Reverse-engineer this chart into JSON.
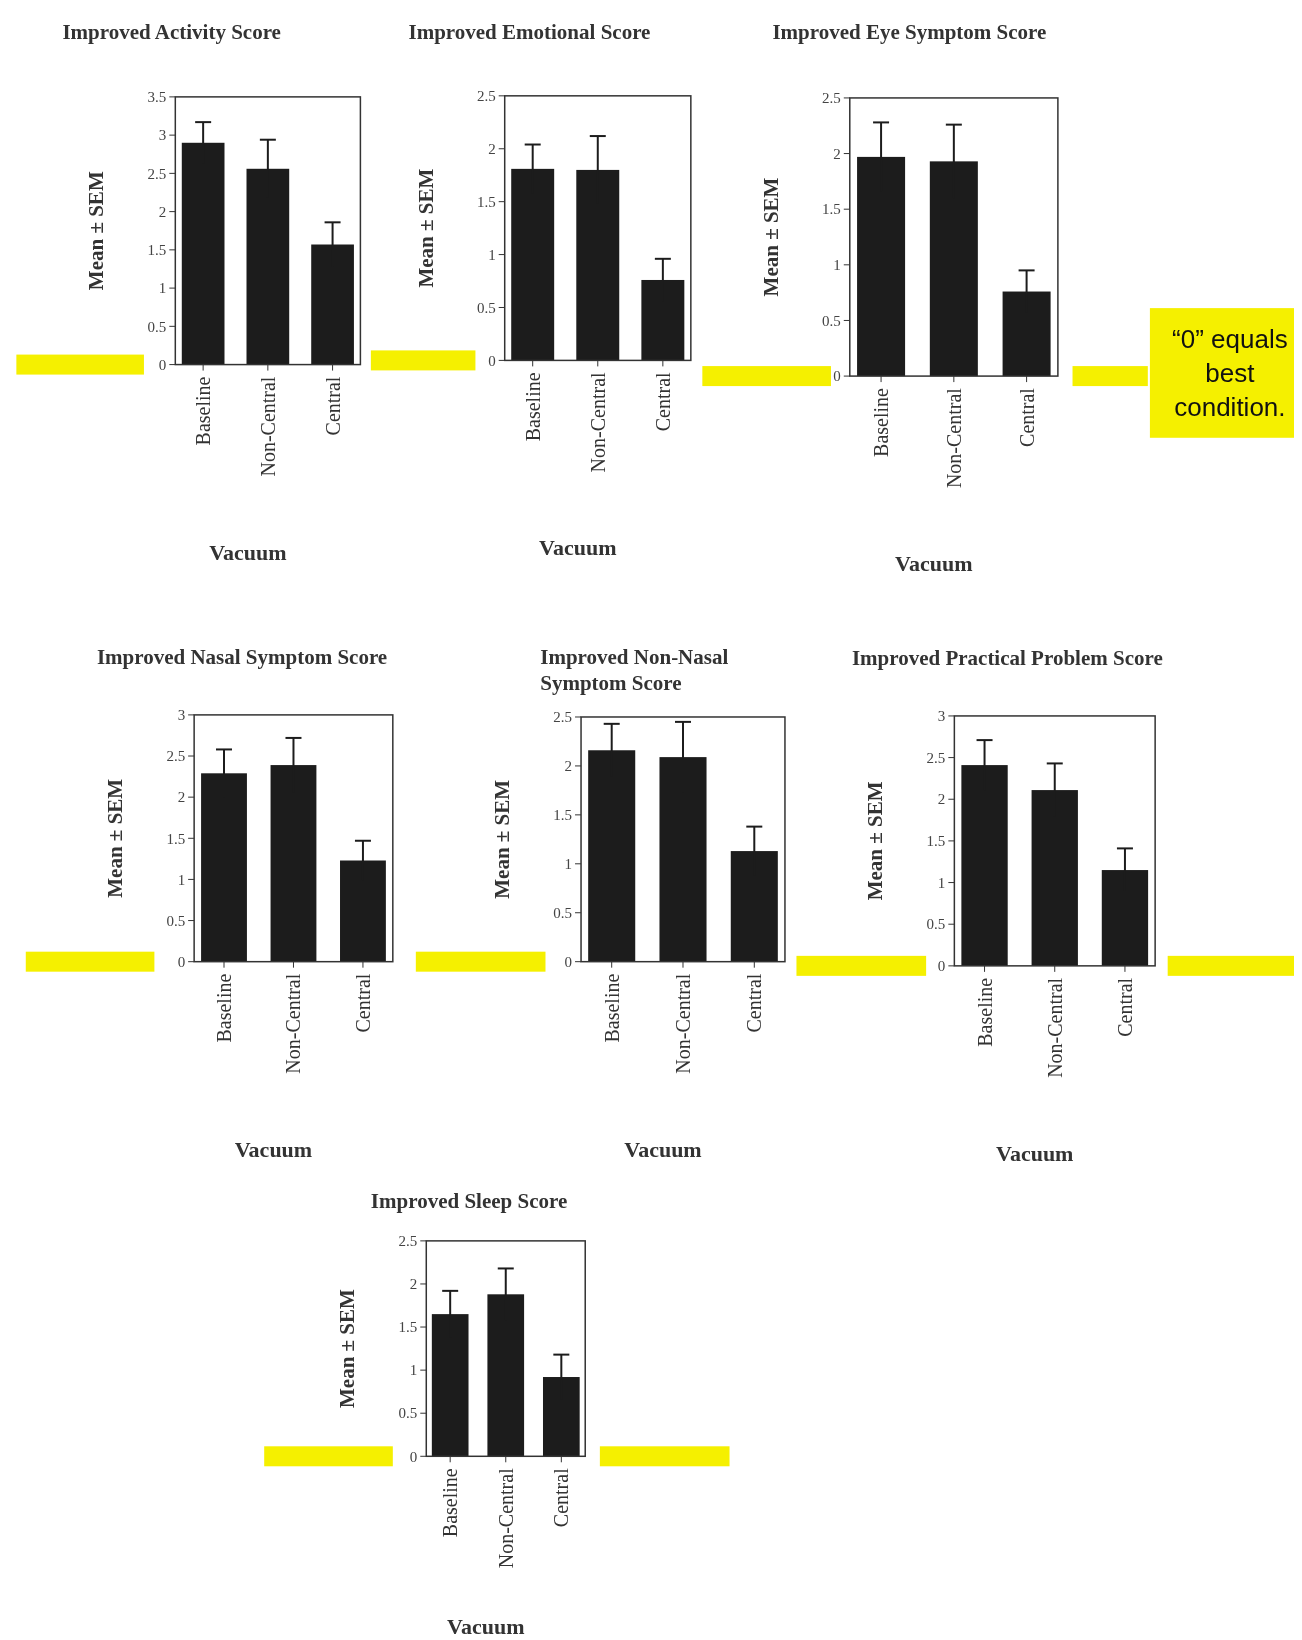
{
  "chart_data": [
    {
      "type": "bar",
      "title": "Improved Activity Score",
      "xlabel": "Vacuum",
      "ylabel": "Mean ± SEM",
      "categories": [
        "Baseline",
        "Non-Central",
        "Central"
      ],
      "values": [
        2.9,
        2.56,
        1.57
      ],
      "errors": [
        0.27,
        0.38,
        0.29
      ],
      "color": "#1c1c1c",
      "ylim": [
        0,
        3.5
      ],
      "yticks": [
        0,
        0.5,
        1,
        1.5,
        2,
        2.5,
        3,
        3.5
      ]
    },
    {
      "type": "bar",
      "title": "Improved Emotional Score",
      "xlabel": "Vacuum",
      "ylabel": "Mean ± SEM",
      "categories": [
        "Baseline",
        "Non-Central",
        "Central"
      ],
      "values": [
        1.81,
        1.8,
        0.76
      ],
      "errors": [
        0.23,
        0.32,
        0.2
      ],
      "color": "#1c1c1c",
      "ylim": [
        0,
        2.5
      ],
      "yticks": [
        0,
        0.5,
        1,
        1.5,
        2,
        2.5
      ]
    },
    {
      "type": "bar",
      "title": "Improved Eye Symptom Score",
      "xlabel": "Vacuum",
      "ylabel": "Mean ± SEM",
      "categories": [
        "Baseline",
        "Non-Central",
        "Central"
      ],
      "values": [
        1.97,
        1.93,
        0.76
      ],
      "errors": [
        0.31,
        0.33,
        0.19
      ],
      "color": "#1c1c1c",
      "ylim": [
        0,
        2.5
      ],
      "yticks": [
        0,
        0.5,
        1,
        1.5,
        2,
        2.5
      ],
      "annotations": [
        "“0” equals best condition."
      ]
    },
    {
      "type": "bar",
      "title": "Improved Nasal Symptom Score",
      "xlabel": "Vacuum",
      "ylabel": "Mean ± SEM",
      "categories": [
        "Baseline",
        "Non-Central",
        "Central"
      ],
      "values": [
        2.29,
        2.39,
        1.23
      ],
      "errors": [
        0.29,
        0.33,
        0.24
      ],
      "color": "#1c1c1c",
      "ylim": [
        0,
        3
      ],
      "yticks": [
        0,
        0.5,
        1,
        1.5,
        2,
        2.5,
        3
      ]
    },
    {
      "type": "bar",
      "title": "Improved Non-Nasal Symptom Score",
      "xlabel": "Vacuum",
      "ylabel": "Mean ± SEM",
      "categories": [
        "Baseline",
        "Non-Central",
        "Central"
      ],
      "values": [
        2.16,
        2.09,
        1.13
      ],
      "errors": [
        0.27,
        0.36,
        0.25
      ],
      "color": "#1c1c1c",
      "ylim": [
        0,
        2.5
      ],
      "yticks": [
        0,
        0.5,
        1,
        1.5,
        2,
        2.5
      ]
    },
    {
      "type": "bar",
      "title": "Improved Practical Problem Score",
      "xlabel": "Vacuum",
      "ylabel": "Mean ± SEM",
      "categories": [
        "Baseline",
        "Non-Central",
        "Central"
      ],
      "values": [
        2.41,
        2.11,
        1.15
      ],
      "errors": [
        0.3,
        0.32,
        0.26
      ],
      "color": "#1c1c1c",
      "ylim": [
        0,
        3
      ],
      "yticks": [
        0,
        0.5,
        1,
        1.5,
        2,
        2.5,
        3
      ]
    },
    {
      "type": "bar",
      "title": "Improved Sleep Score",
      "xlabel": "Vacuum",
      "ylabel": "Mean ± SEM",
      "categories": [
        "Baseline",
        "Non-Central",
        "Central"
      ],
      "values": [
        1.65,
        1.88,
        0.92
      ],
      "errors": [
        0.27,
        0.3,
        0.26
      ],
      "color": "#1c1c1c",
      "ylim": [
        0,
        2.5
      ],
      "yticks": [
        0,
        0.5,
        1,
        1.5,
        2,
        2.5
      ]
    }
  ]
}
